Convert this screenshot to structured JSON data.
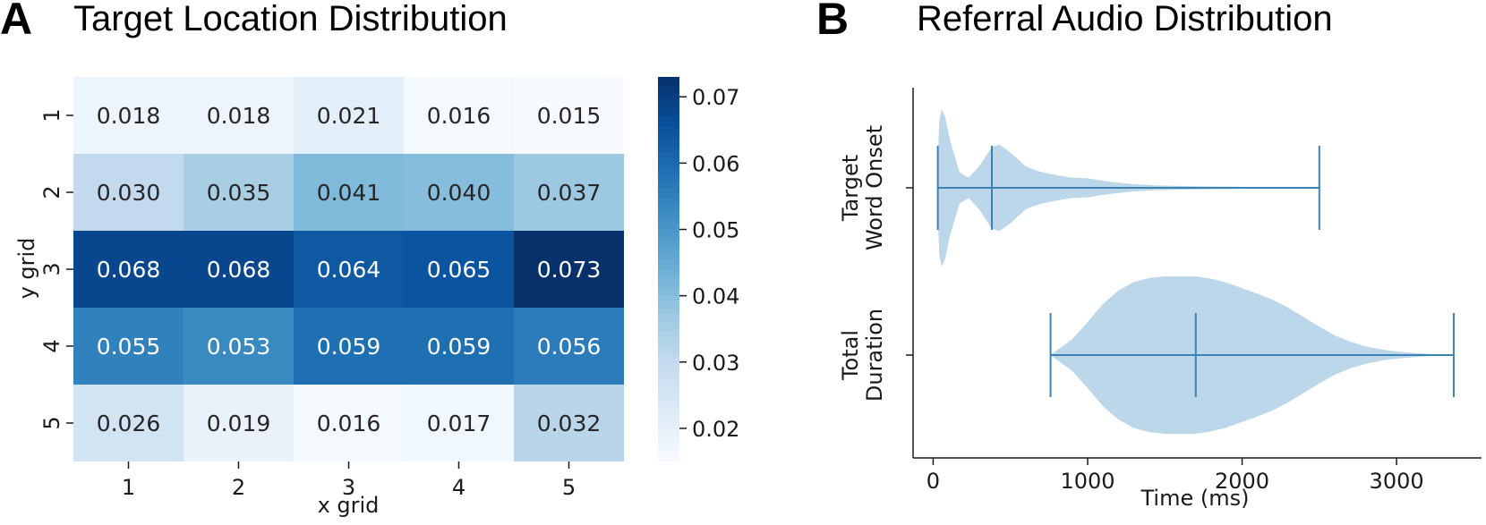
{
  "panels": {
    "a": {
      "letter": "A",
      "title": "Target Location Distribution"
    },
    "b": {
      "letter": "B",
      "title": "Referral Audio Distribution"
    }
  },
  "chart_data": [
    {
      "type": "heatmap",
      "title": "Target Location Distribution",
      "xlabel": "x grid",
      "ylabel": "y grid",
      "x_categories": [
        "1",
        "2",
        "3",
        "4",
        "5"
      ],
      "y_categories": [
        "1",
        "2",
        "3",
        "4",
        "5"
      ],
      "values": [
        [
          "0.018",
          "0.018",
          "0.021",
          "0.016",
          "0.015"
        ],
        [
          "0.030",
          "0.035",
          "0.041",
          "0.040",
          "0.037"
        ],
        [
          "0.068",
          "0.068",
          "0.064",
          "0.065",
          "0.073"
        ],
        [
          "0.055",
          "0.053",
          "0.059",
          "0.059",
          "0.056"
        ],
        [
          "0.026",
          "0.019",
          "0.016",
          "0.017",
          "0.032"
        ]
      ],
      "colorbar": {
        "colormap": "Blues",
        "range": [
          0.015,
          0.073
        ],
        "ticks": [
          "0.02",
          "0.03",
          "0.04",
          "0.05",
          "0.06",
          "0.07"
        ]
      }
    },
    {
      "type": "violin",
      "title": "Referral Audio Distribution",
      "xlabel": "Time (ms)",
      "xlim": [
        -130,
        3550
      ],
      "xticks": [
        "0",
        "1000",
        "2000",
        "3000"
      ],
      "fill_color": "#bcd6ea",
      "line_color": "#3b82b5",
      "series": [
        {
          "name": [
            "Target",
            "Word Onset"
          ],
          "min": 30,
          "median": 380,
          "max": 2500,
          "density": [
            [
              30,
              0.35
            ],
            [
              40,
              0.85
            ],
            [
              55,
              1.0
            ],
            [
              75,
              0.92
            ],
            [
              110,
              0.6
            ],
            [
              170,
              0.2
            ],
            [
              230,
              0.13
            ],
            [
              300,
              0.28
            ],
            [
              380,
              0.52
            ],
            [
              430,
              0.55
            ],
            [
              500,
              0.45
            ],
            [
              600,
              0.27
            ],
            [
              700,
              0.2
            ],
            [
              800,
              0.16
            ],
            [
              900,
              0.13
            ],
            [
              1000,
              0.12
            ],
            [
              1100,
              0.09
            ],
            [
              1200,
              0.065
            ],
            [
              1300,
              0.045
            ],
            [
              1450,
              0.03
            ],
            [
              1700,
              0.02
            ],
            [
              2000,
              0.012
            ],
            [
              2250,
              0.006
            ],
            [
              2500,
              0.003
            ]
          ]
        },
        {
          "name": [
            "Total",
            "Duration"
          ],
          "min": 760,
          "median": 1700,
          "max": 3370,
          "density": [
            [
              760,
              0.0
            ],
            [
              800,
              0.06
            ],
            [
              900,
              0.2
            ],
            [
              1000,
              0.42
            ],
            [
              1100,
              0.65
            ],
            [
              1200,
              0.82
            ],
            [
              1300,
              0.93
            ],
            [
              1400,
              0.98
            ],
            [
              1500,
              1.0
            ],
            [
              1600,
              1.0
            ],
            [
              1700,
              1.0
            ],
            [
              1800,
              0.97
            ],
            [
              1900,
              0.92
            ],
            [
              2000,
              0.85
            ],
            [
              2100,
              0.78
            ],
            [
              2200,
              0.7
            ],
            [
              2300,
              0.6
            ],
            [
              2400,
              0.48
            ],
            [
              2500,
              0.36
            ],
            [
              2600,
              0.25
            ],
            [
              2700,
              0.17
            ],
            [
              2800,
              0.11
            ],
            [
              2900,
              0.07
            ],
            [
              3000,
              0.045
            ],
            [
              3200,
              0.015
            ],
            [
              3370,
              0.0
            ]
          ]
        }
      ]
    }
  ]
}
